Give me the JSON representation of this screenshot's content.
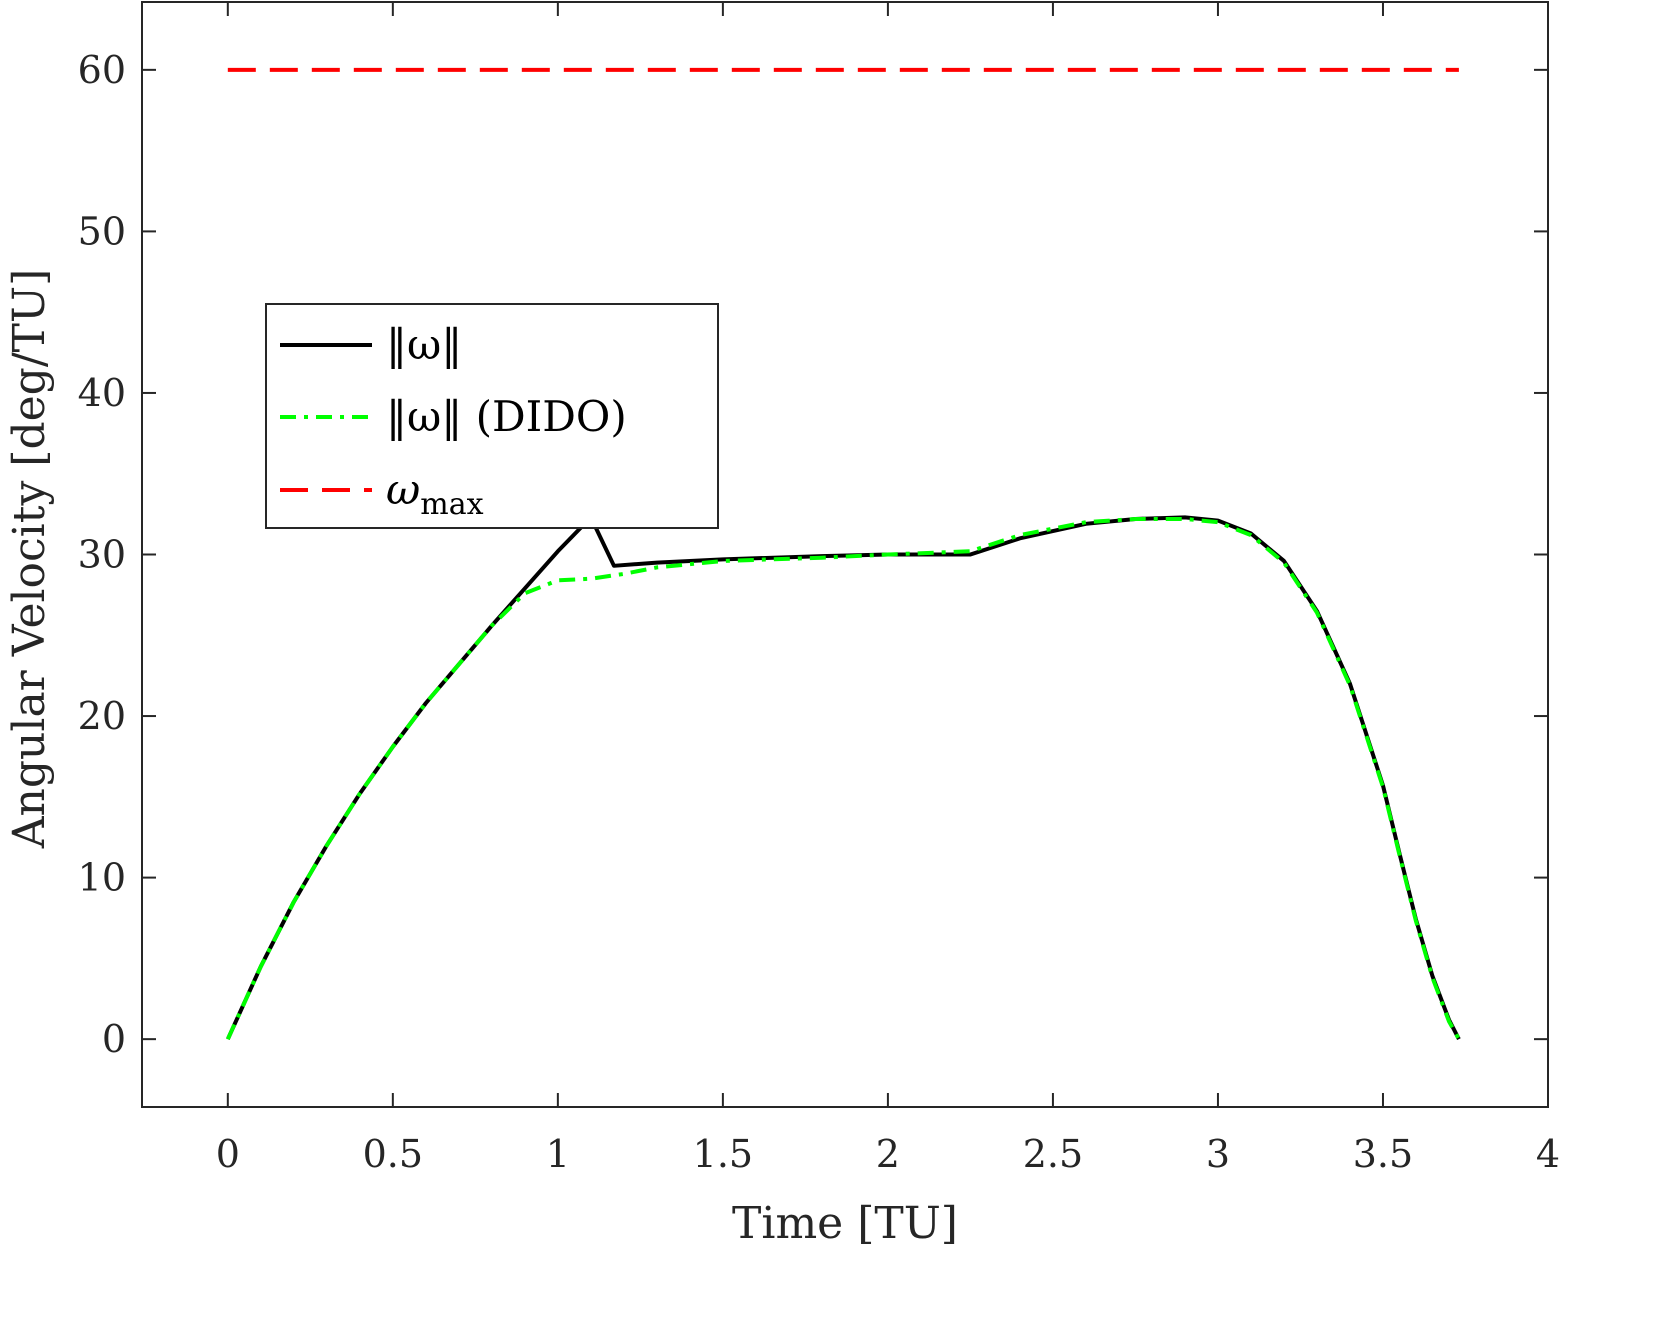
{
  "chart_data": {
    "type": "line",
    "title": "",
    "xlabel": "Time [TU]",
    "ylabel": "Angular Velocity [deg/TU]",
    "xlim": [
      -0.26,
      4
    ],
    "ylim": [
      -4.2,
      64.2
    ],
    "xticks": [
      0,
      0.5,
      1,
      1.5,
      2,
      2.5,
      3,
      3.5,
      4
    ],
    "xtick_labels": [
      "0",
      "0.5",
      "1",
      "1.5",
      "2",
      "2.5",
      "3",
      "3.5",
      "4"
    ],
    "yticks": [
      0,
      10,
      20,
      30,
      40,
      50,
      60
    ],
    "ytick_labels": [
      "0",
      "10",
      "20",
      "30",
      "40",
      "50",
      "60"
    ],
    "grid": false,
    "legend_position": "upper-left, inside axes",
    "series": [
      {
        "legend_label": "‖ω‖",
        "color": "#000000",
        "style": "solid",
        "x": [
          0,
          0.1,
          0.2,
          0.3,
          0.4,
          0.5,
          0.6,
          0.7,
          0.8,
          0.9,
          1.0,
          1.1,
          1.17,
          1.3,
          1.5,
          1.8,
          2.0,
          2.25,
          2.4,
          2.6,
          2.75,
          2.9,
          3.0,
          3.1,
          3.2,
          3.3,
          3.4,
          3.5,
          3.55,
          3.6,
          3.65,
          3.7,
          3.73
        ],
        "y": [
          0,
          4.5,
          8.5,
          12.0,
          15.2,
          18.1,
          20.8,
          23.2,
          25.6,
          27.9,
          30.2,
          32.3,
          29.3,
          29.5,
          29.7,
          29.9,
          30.0,
          30.0,
          31.0,
          31.9,
          32.2,
          32.3,
          32.1,
          31.3,
          29.6,
          26.5,
          22.0,
          15.7,
          11.5,
          7.4,
          3.9,
          1.2,
          0
        ]
      },
      {
        "legend_label": "‖ω‖ (DIDO)",
        "color": "#00ff00",
        "style": "dash-dot",
        "x": [
          0,
          0.1,
          0.2,
          0.3,
          0.4,
          0.5,
          0.6,
          0.7,
          0.8,
          0.9,
          1.0,
          1.1,
          1.2,
          1.3,
          1.5,
          1.8,
          2.0,
          2.25,
          2.4,
          2.6,
          2.75,
          2.9,
          3.0,
          3.1,
          3.2,
          3.3,
          3.4,
          3.5,
          3.55,
          3.6,
          3.65,
          3.7,
          3.73
        ],
        "y": [
          0,
          4.5,
          8.5,
          12.0,
          15.2,
          18.1,
          20.8,
          23.2,
          25.6,
          27.6,
          28.4,
          28.5,
          28.8,
          29.2,
          29.6,
          29.8,
          30.0,
          30.2,
          31.2,
          32.0,
          32.2,
          32.2,
          32.0,
          31.2,
          29.5,
          26.4,
          21.9,
          15.6,
          11.4,
          7.3,
          3.8,
          1.1,
          0
        ]
      },
      {
        "legend_label": "ω",
        "legend_subscript": "max",
        "color": "#ff0000",
        "style": "dashed",
        "x": [
          0,
          3.73
        ],
        "y": [
          60,
          60
        ]
      }
    ]
  }
}
